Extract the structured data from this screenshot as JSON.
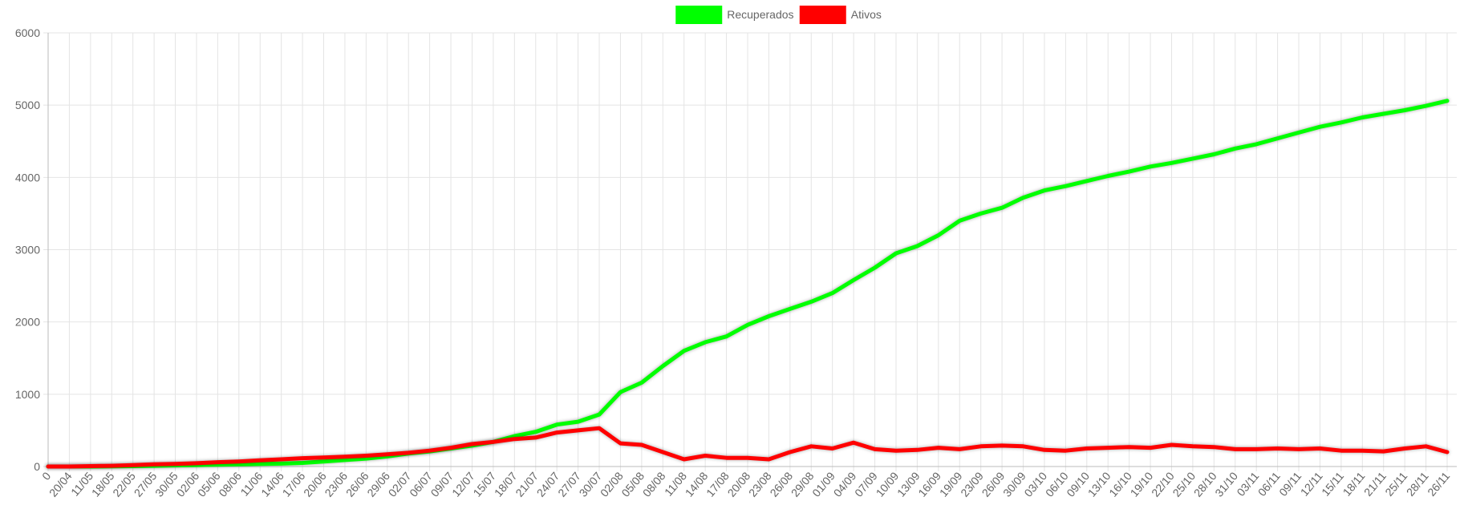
{
  "chart_data": {
    "type": "line",
    "categories": [
      "0",
      "20/04",
      "11/05",
      "18/05",
      "22/05",
      "27/05",
      "30/05",
      "02/06",
      "05/06",
      "08/06",
      "11/06",
      "14/06",
      "17/06",
      "20/06",
      "23/06",
      "26/06",
      "29/06",
      "02/07",
      "06/07",
      "09/07",
      "12/07",
      "15/07",
      "18/07",
      "21/07",
      "24/07",
      "27/07",
      "30/07",
      "02/08",
      "05/08",
      "08/08",
      "11/08",
      "14/08",
      "17/08",
      "20/08",
      "23/08",
      "26/08",
      "29/08",
      "01/09",
      "04/09",
      "07/09",
      "10/09",
      "13/09",
      "16/09",
      "19/09",
      "23/09",
      "26/09",
      "30/09",
      "03/10",
      "06/10",
      "09/10",
      "13/10",
      "16/10",
      "19/10",
      "22/10",
      "25/10",
      "28/10",
      "31/10",
      "03/11",
      "06/11",
      "09/11",
      "12/11",
      "15/11",
      "18/11",
      "21/11",
      "25/11",
      "28/11",
      "26/11"
    ],
    "series": [
      {
        "name": "Recuperados",
        "color": "#00ff00",
        "values": [
          0,
          0,
          0,
          2,
          5,
          10,
          15,
          20,
          25,
          30,
          35,
          40,
          50,
          70,
          90,
          110,
          140,
          180,
          210,
          250,
          290,
          340,
          420,
          480,
          580,
          620,
          720,
          1030,
          1160,
          1390,
          1600,
          1720,
          1800,
          1960,
          2080,
          2180,
          2280,
          2400,
          2580,
          2750,
          2950,
          3050,
          3200,
          3400,
          3500,
          3580,
          3720,
          3820,
          3880,
          3950,
          4020,
          4080,
          4150,
          4200,
          4260,
          4320,
          4400,
          4460,
          4540,
          4620,
          4700,
          4760,
          4830,
          4880,
          4930,
          4990,
          5060
        ]
      },
      {
        "name": "Ativos",
        "color": "#ff0000",
        "values": [
          0,
          0,
          5,
          10,
          20,
          30,
          35,
          45,
          60,
          70,
          85,
          100,
          115,
          125,
          135,
          150,
          170,
          190,
          220,
          260,
          310,
          340,
          380,
          400,
          470,
          500,
          530,
          320,
          300,
          200,
          100,
          150,
          120,
          120,
          100,
          200,
          280,
          250,
          330,
          240,
          220,
          230,
          260,
          240,
          280,
          290,
          280,
          230,
          220,
          250,
          260,
          270,
          260,
          300,
          280,
          270,
          240,
          240,
          250,
          240,
          250,
          220,
          220,
          210,
          250,
          280,
          200
        ]
      }
    ],
    "ylim": [
      0,
      6000
    ],
    "yticks": [
      0,
      1000,
      2000,
      3000,
      4000,
      5000,
      6000
    ],
    "grid": true,
    "legend": "top"
  }
}
